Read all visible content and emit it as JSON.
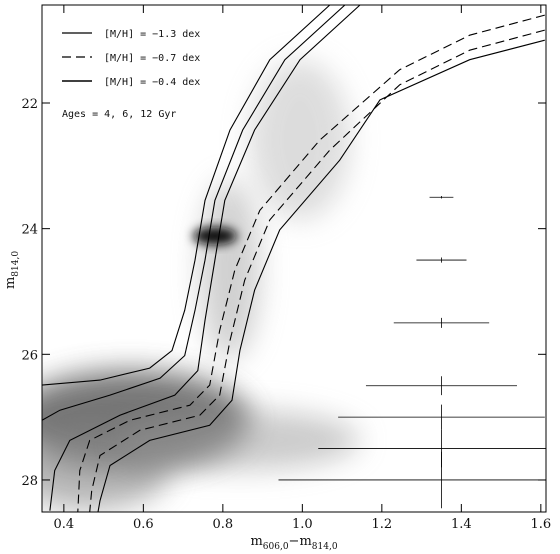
{
  "chart_data": {
    "type": "line",
    "xlabel": [
      {
        "text": "m",
        "sub": false
      },
      {
        "text": "606,0",
        "sub": true
      },
      {
        "text": "−m",
        "sub": false
      },
      {
        "text": "814,0",
        "sub": true
      }
    ],
    "ylabel": [
      {
        "text": "m",
        "sub": false
      },
      {
        "text": "814,0",
        "sub": true
      }
    ],
    "xlim": [
      0.345,
      1.613
    ],
    "ylim": [
      20.44,
      28.51
    ],
    "y_inverted": true,
    "xticks": [
      0.4,
      0.6,
      0.8,
      {
        "value": 1.0,
        "label": "1.0"
      },
      1.2,
      1.4,
      1.6
    ],
    "yticks": [
      22,
      24,
      26,
      28
    ],
    "color": "#000000",
    "legend": [
      {
        "label": "[M/H] = −1.3 dex",
        "dashed": false
      },
      {
        "label": "[M/H] = −0.7 dex",
        "dashed": true
      },
      {
        "label": "[M/H] = −0.4 dex",
        "dashed": false
      }
    ],
    "annotation": "Ages = 4, 6, 12 Gyr",
    "series": [
      {
        "dashed": false,
        "x": [
          1.069,
          0.918,
          0.818,
          0.755,
          0.73,
          0.704,
          0.672,
          0.616,
          0.491,
          0.345
        ],
        "y": [
          20.44,
          21.31,
          22.43,
          23.55,
          24.5,
          25.3,
          25.94,
          26.22,
          26.41,
          26.49
        ]
      },
      {
        "dashed": false,
        "x": [
          1.107,
          0.956,
          0.85,
          0.78,
          0.755,
          0.73,
          0.704,
          0.642,
          0.516,
          0.39,
          0.345
        ],
        "y": [
          20.44,
          21.31,
          22.43,
          23.55,
          24.5,
          25.3,
          26.02,
          26.38,
          26.65,
          26.89,
          27.05
        ]
      },
      {
        "dashed": false,
        "x": [
          1.145,
          0.994,
          0.88,
          0.805,
          0.78,
          0.755,
          0.737,
          0.679,
          0.541,
          0.415,
          0.377,
          0.365
        ],
        "y": [
          20.44,
          21.31,
          22.43,
          23.55,
          24.5,
          25.46,
          26.26,
          26.65,
          26.97,
          27.37,
          27.85,
          28.49
        ]
      },
      {
        "dashed": true,
        "x": [
          1.61,
          1.421,
          1.245,
          1.044,
          0.893,
          0.83,
          0.792,
          0.767,
          0.717,
          0.566,
          0.465,
          0.44,
          0.435
        ],
        "y": [
          20.6,
          20.92,
          21.47,
          22.59,
          23.71,
          24.66,
          25.62,
          26.49,
          26.81,
          27.05,
          27.37,
          27.85,
          28.51
        ]
      },
      {
        "dashed": true,
        "x": [
          1.61,
          1.421,
          1.245,
          1.069,
          0.918,
          0.855,
          0.818,
          0.792,
          0.742,
          0.591,
          0.491,
          0.47,
          0.465
        ],
        "y": [
          20.84,
          21.16,
          21.71,
          22.75,
          23.86,
          24.82,
          25.78,
          26.65,
          26.97,
          27.21,
          27.61,
          28.17,
          28.51
        ]
      },
      {
        "dashed": false,
        "x": [
          1.61,
          1.421,
          1.195,
          1.094,
          0.943,
          0.88,
          0.843,
          0.823,
          0.767,
          0.616,
          0.516,
          0.491,
          0.486
        ],
        "y": [
          21.0,
          21.31,
          21.95,
          22.91,
          24.02,
          24.98,
          25.94,
          26.73,
          27.13,
          27.37,
          27.77,
          28.33,
          28.51
        ]
      }
    ],
    "errorbars": {
      "x": [
        1.35,
        1.35,
        1.35,
        1.35,
        1.35,
        1.35,
        1.35
      ],
      "y": [
        23.5,
        24.5,
        25.5,
        26.5,
        27.0,
        27.5,
        28.0
      ],
      "xerr": [
        0.03,
        0.063,
        0.12,
        0.19,
        0.26,
        0.31,
        0.41
      ],
      "yerr": [
        0.02,
        0.04,
        0.08,
        0.15,
        0.2,
        0.3,
        0.45
      ]
    }
  }
}
